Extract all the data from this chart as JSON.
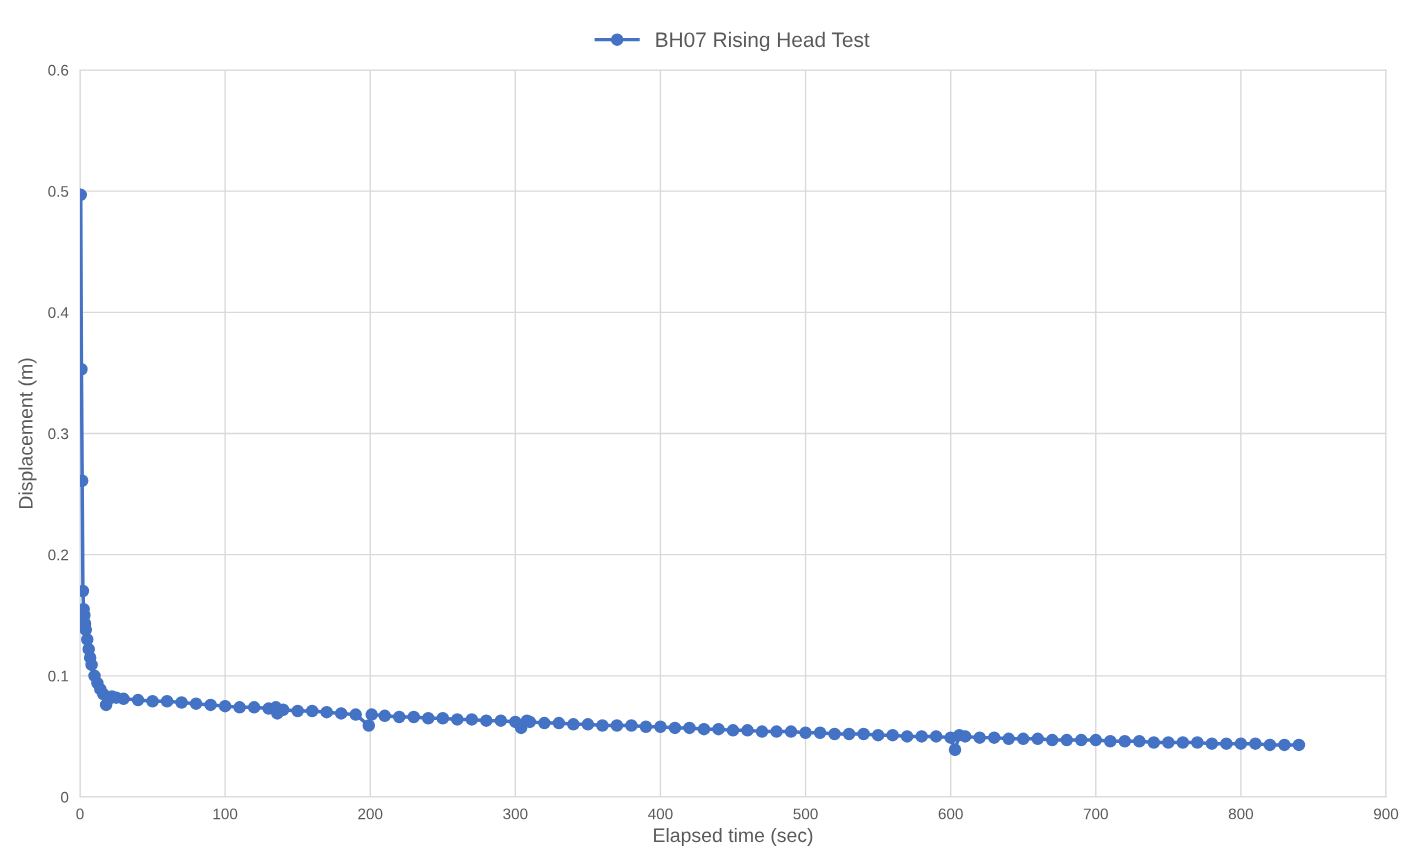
{
  "chart_data": {
    "type": "line",
    "xlabel": "Elapsed time (sec)",
    "ylabel": "Displacement (m)",
    "xlim": [
      0,
      900
    ],
    "ylim": [
      0,
      0.6
    ],
    "xticks": [
      0,
      100,
      200,
      300,
      400,
      500,
      600,
      700,
      800,
      900
    ],
    "yticks": [
      0,
      0.1,
      0.2,
      0.3,
      0.4,
      0.5,
      0.6
    ],
    "grid": true,
    "legend": "top",
    "marker": "circle",
    "line_style": "solid",
    "series": [
      {
        "name": "BH07 Rising Head Test",
        "color": "#4472c4",
        "x": [
          0.5,
          1,
          1.5,
          2,
          2.5,
          3,
          3.5,
          4,
          5,
          6,
          7,
          8,
          10,
          12,
          14,
          16,
          18,
          20,
          22,
          25,
          30,
          40,
          50,
          60,
          70,
          80,
          90,
          100,
          110,
          120,
          130,
          135,
          136,
          140,
          150,
          160,
          170,
          180,
          190,
          199,
          201,
          210,
          220,
          230,
          240,
          250,
          260,
          270,
          280,
          290,
          300,
          304,
          308,
          310,
          320,
          330,
          340,
          350,
          360,
          370,
          380,
          390,
          400,
          410,
          420,
          430,
          440,
          450,
          460,
          470,
          480,
          490,
          500,
          510,
          520,
          530,
          540,
          550,
          560,
          570,
          580,
          590,
          600,
          603,
          606,
          610,
          620,
          630,
          640,
          650,
          660,
          670,
          680,
          690,
          700,
          710,
          720,
          730,
          740,
          750,
          760,
          770,
          780,
          790,
          800,
          810,
          820,
          830,
          840
        ],
        "values": [
          0.497,
          0.353,
          0.261,
          0.17,
          0.155,
          0.15,
          0.143,
          0.138,
          0.13,
          0.122,
          0.115,
          0.109,
          0.1,
          0.094,
          0.089,
          0.085,
          0.076,
          0.081,
          0.083,
          0.082,
          0.081,
          0.08,
          0.079,
          0.079,
          0.078,
          0.077,
          0.076,
          0.075,
          0.074,
          0.074,
          0.073,
          0.074,
          0.069,
          0.072,
          0.071,
          0.071,
          0.07,
          0.069,
          0.068,
          0.059,
          0.068,
          0.067,
          0.066,
          0.066,
          0.065,
          0.065,
          0.064,
          0.064,
          0.063,
          0.063,
          0.062,
          0.057,
          0.063,
          0.062,
          0.061,
          0.061,
          0.06,
          0.06,
          0.059,
          0.059,
          0.059,
          0.058,
          0.058,
          0.057,
          0.057,
          0.056,
          0.056,
          0.055,
          0.055,
          0.054,
          0.054,
          0.054,
          0.053,
          0.053,
          0.052,
          0.052,
          0.052,
          0.051,
          0.051,
          0.05,
          0.05,
          0.05,
          0.049,
          0.039,
          0.051,
          0.05,
          0.049,
          0.049,
          0.048,
          0.048,
          0.048,
          0.047,
          0.047,
          0.047,
          0.047,
          0.046,
          0.046,
          0.046,
          0.045,
          0.045,
          0.045,
          0.045,
          0.044,
          0.044,
          0.044,
          0.044,
          0.043,
          0.043,
          0.043
        ]
      }
    ]
  }
}
